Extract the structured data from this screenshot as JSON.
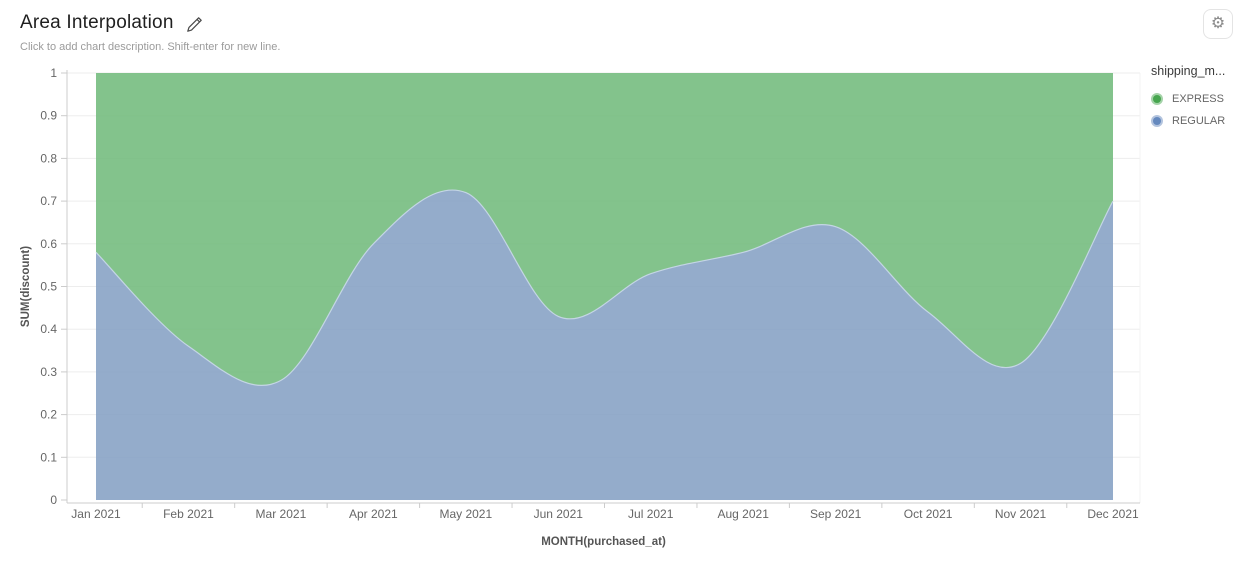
{
  "header": {
    "title": "Area Interpolation",
    "subtitle": "Click to add chart description. Shift-enter for new line.",
    "gear_glyph": "⚙"
  },
  "legend": {
    "title": "shipping_m...",
    "items": [
      {
        "label": "EXPRESS",
        "color": "#47A64F",
        "halo": "#A5D3A9"
      },
      {
        "label": "REGULAR",
        "color": "#6589BE",
        "halo": "#B3C4DE"
      }
    ]
  },
  "chart_data": {
    "type": "area",
    "stacked": true,
    "normalized": true,
    "smooth": true,
    "title": "Area Interpolation",
    "xlabel": "MONTH(purchased_at)",
    "ylabel": "SUM(discount)",
    "x_categories": [
      "Jan 2021",
      "Feb 2021",
      "Mar 2021",
      "Apr 2021",
      "May 2021",
      "Jun 2021",
      "Jul 2021",
      "Aug 2021",
      "Sep 2021",
      "Oct 2021",
      "Nov 2021",
      "Dec 2021"
    ],
    "y_ticks": [
      "0",
      "0.1",
      "0.2",
      "0.3",
      "0.4",
      "0.5",
      "0.6",
      "0.7",
      "0.8",
      "0.9",
      "1"
    ],
    "ylim": [
      0,
      1
    ],
    "legend_position": "right",
    "grid": true,
    "series": [
      {
        "name": "EXPRESS",
        "color": "#6DB878",
        "values": [
          0.42,
          0.64,
          0.72,
          0.4,
          0.28,
          0.57,
          0.47,
          0.42,
          0.36,
          0.56,
          0.68,
          0.3
        ]
      },
      {
        "name": "REGULAR",
        "color": "#819DC2",
        "values": [
          0.58,
          0.36,
          0.28,
          0.6,
          0.72,
          0.43,
          0.53,
          0.58,
          0.64,
          0.44,
          0.32,
          0.7
        ]
      }
    ],
    "colors": {
      "gridline": "#EDEDED",
      "axis_line": "#CCCCCC",
      "boundary_line": "#C9D8E9"
    }
  }
}
